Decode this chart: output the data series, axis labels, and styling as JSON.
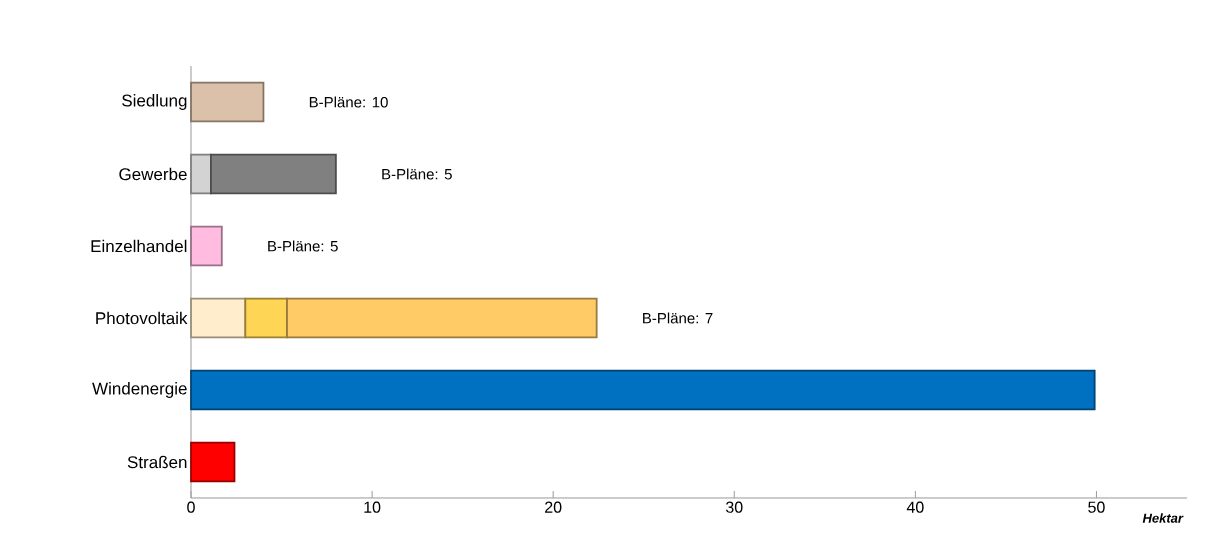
{
  "chart_data": {
    "type": "bar",
    "orientation": "horizontal",
    "stacked": true,
    "xlabel": "Hektar",
    "categories": [
      "Siedlung",
      "Gewerbe",
      "Einzelhandel",
      "Photovoltaik",
      "Windenergie",
      "Straßen"
    ],
    "series": [
      {
        "colors": [
          "#dbc1a9",
          "#d3d3d3",
          "#ffbbe0",
          "#ffedcc",
          "#0070c0",
          "#ff0000"
        ],
        "values": [
          4.0,
          1.1,
          1.7,
          3.0,
          49.9,
          2.4
        ]
      },
      {
        "colors": [
          "#808080",
          "#808080",
          "#808080",
          "#ffd555",
          "#808080",
          "#808080"
        ],
        "values": [
          null,
          6.9,
          null,
          2.3,
          null,
          null
        ]
      },
      {
        "colors": [
          "#ffcb66",
          "#ffcb66",
          "#ffcb66",
          "#ffcb66",
          "#ffcb66",
          "#ffcb66"
        ],
        "values": [
          null,
          null,
          null,
          17.1,
          null,
          null
        ]
      }
    ],
    "xlim": [
      0,
      55
    ],
    "xticks": [
      0,
      10,
      20,
      30,
      40,
      50
    ],
    "grid": false,
    "annotations": [
      "B-Pläne: 10",
      "B-Pläne: 5",
      "B-Pläne: 5",
      "B-Pläne: 7"
    ]
  }
}
